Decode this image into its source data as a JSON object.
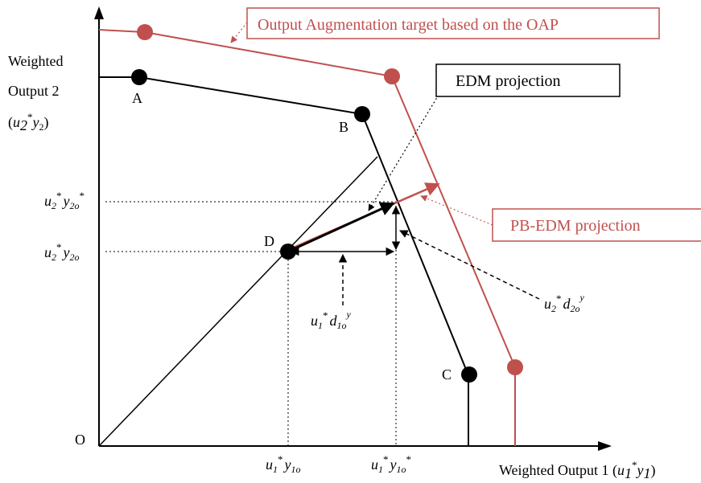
{
  "colors": {
    "frontier_black": "#000000",
    "frontier_red": "#c0504d",
    "point_red": "#c0504d"
  },
  "axes": {
    "origin": "O",
    "y_label_line1": "Weighted",
    "y_label_line2": "Output 2",
    "y_label_var_u": "u",
    "y_label_var_sub": "2",
    "y_label_var_sup": "*",
    "y_label_var_y": "y",
    "y_label_var_ysub": "2",
    "x_label": "Weighted Output 1 ",
    "x_label_var_u": "u",
    "x_label_var_sub": "1",
    "x_label_var_sup": "*",
    "x_label_var_y": "y",
    "x_label_var_ysub": "1"
  },
  "points": {
    "A": "A",
    "B": "B",
    "C": "C",
    "D": "D"
  },
  "callouts": {
    "oap_target": "Output Augmentation target based on the OAP",
    "edm_projection": "EDM projection",
    "pbedm_projection": "PB-EDM projection"
  },
  "ticks": {
    "y_star": {
      "u": "u",
      "usub": "2",
      "ustar": "*",
      "y": "y",
      "ysub": "2o",
      "ystar": "*"
    },
    "y_plain": {
      "u": "u",
      "usub": "2",
      "ustar": "*",
      "y": "y",
      "ysub": "2o"
    },
    "x_plain": {
      "u": "u",
      "usub": "1",
      "ustar": "*",
      "y": "y",
      "ysub": "1o"
    },
    "x_star": {
      "u": "u",
      "usub": "1",
      "ustar": "*",
      "y": "y",
      "ysub": "1o",
      "ystar": "*"
    }
  },
  "slacks": {
    "d1": {
      "u": "u",
      "usub": "1",
      "ustar": "*",
      "d": "d",
      "dsub": "1o",
      "dsup": "y"
    },
    "d2": {
      "u": "u",
      "usub": "2",
      "ustar": "*",
      "d": "d",
      "dsub": "2o",
      "dsup": "y"
    }
  }
}
